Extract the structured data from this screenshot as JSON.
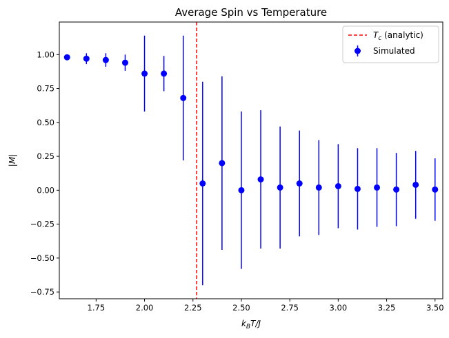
{
  "chart_data": {
    "type": "scatter",
    "title": "Average Spin vs Temperature",
    "xlabel_main": "k",
    "xlabel_sub": "B",
    "xlabel_tail": "T/J",
    "ylabel": "|M|",
    "xlim": [
      1.56,
      3.54
    ],
    "ylim": [
      -0.8,
      1.24
    ],
    "x_ticks": [
      1.75,
      2.0,
      2.25,
      2.5,
      2.75,
      3.0,
      3.25,
      3.5
    ],
    "x_tick_labels": [
      "1.75",
      "2.00",
      "2.25",
      "2.50",
      "2.75",
      "3.00",
      "3.25",
      "3.50"
    ],
    "y_ticks": [
      -0.75,
      -0.5,
      -0.25,
      0.0,
      0.25,
      0.5,
      0.75,
      1.0
    ],
    "y_tick_labels": [
      "−0.75",
      "−0.50",
      "−0.25",
      "0.00",
      "0.25",
      "0.50",
      "0.75",
      "1.00"
    ],
    "grid": false,
    "legend_position": "top-right",
    "series": [
      {
        "name": "Simulated",
        "kind": "errorbar",
        "color": "#0000ff",
        "x": [
          1.6,
          1.7,
          1.8,
          1.9,
          2.0,
          2.1,
          2.2,
          2.3,
          2.4,
          2.5,
          2.6,
          2.7,
          2.8,
          2.9,
          3.0,
          3.1,
          3.2,
          3.3,
          3.4,
          3.5
        ],
        "y": [
          0.98,
          0.97,
          0.96,
          0.94,
          0.86,
          0.86,
          0.68,
          0.05,
          0.2,
          0.0,
          0.08,
          0.02,
          0.05,
          0.02,
          0.03,
          0.01,
          0.02,
          0.005,
          0.04,
          0.005
        ],
        "yerr": [
          0.02,
          0.04,
          0.05,
          0.06,
          0.28,
          0.13,
          0.46,
          0.75,
          0.64,
          0.58,
          0.51,
          0.45,
          0.39,
          0.35,
          0.31,
          0.3,
          0.29,
          0.27,
          0.25,
          0.23
        ]
      },
      {
        "name_main": "T",
        "name_sub": "c",
        "name_tail": " (analytic)",
        "kind": "vline",
        "color": "#ff0000",
        "x": 2.269
      }
    ]
  }
}
